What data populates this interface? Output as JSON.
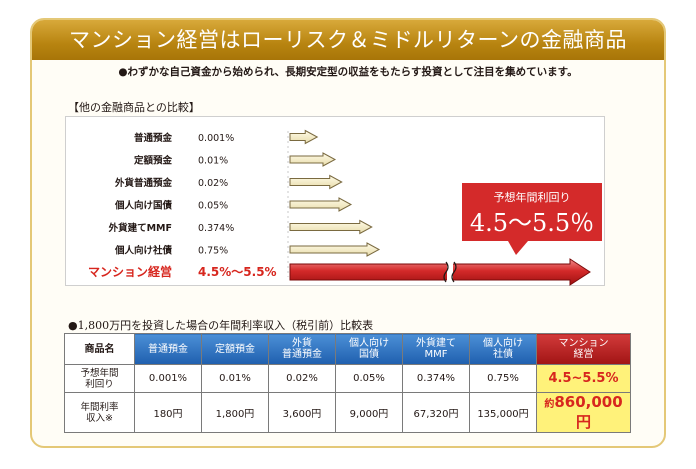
{
  "header": {
    "title": "マンション経営はローリスク＆ミドルリターンの金融商品",
    "subtitle": "●わずかな自己資金から始められ、長期安定型の収益をもたらす投資として注目を集めています。"
  },
  "comparison": {
    "title": "【他の金融商品との比較】",
    "callout_title": "予想年間利回り",
    "callout_value": "4.5～5.5％"
  },
  "chart_data": {
    "type": "bar",
    "orientation": "horizontal",
    "categories": [
      "普通預金",
      "定額預金",
      "外貨普通預金",
      "個人向け国債",
      "外貨建てMMF",
      "個人向け社債",
      "マンション経営"
    ],
    "value_labels": [
      "0.001%",
      "0.01%",
      "0.02%",
      "0.05%",
      "0.374%",
      "0.75%",
      "4.5%～5.5%"
    ],
    "values": [
      0.001,
      0.01,
      0.02,
      0.05,
      0.374,
      0.75,
      5.5
    ],
    "highlight_category": "マンション経営",
    "axis_break": true,
    "colors": {
      "arrow": "#f4ecc6",
      "arrow_stroke": "#7a6a40",
      "highlight": "#d42a2a",
      "highlight_text": "#d7261e"
    }
  },
  "income_table": {
    "title": "●1,800万円を投資した場合の年間利率収入（税引前）比較表",
    "corner": "商品名",
    "columns": [
      [
        "普通預金"
      ],
      [
        "定額預金"
      ],
      [
        "外貨",
        "普通預金"
      ],
      [
        "個人向け",
        "国債"
      ],
      [
        "外貨建て",
        "MMF"
      ],
      [
        "個人向け",
        "社債"
      ],
      [
        "マンション",
        "経営"
      ]
    ],
    "row_yield_label": [
      "予想年間",
      "利回り"
    ],
    "row_income_label": [
      "年間利率",
      "収入※"
    ],
    "yields": [
      "0.001%",
      "0.01%",
      "0.02%",
      "0.05%",
      "0.374%",
      "0.75%",
      "4.5~5.5%"
    ],
    "incomes": [
      "180円",
      "1,800円",
      "3,600円",
      "9,000円",
      "67,320円",
      "135,000円"
    ],
    "mansion_income_prefix": "約",
    "mansion_income": "860,000円"
  }
}
